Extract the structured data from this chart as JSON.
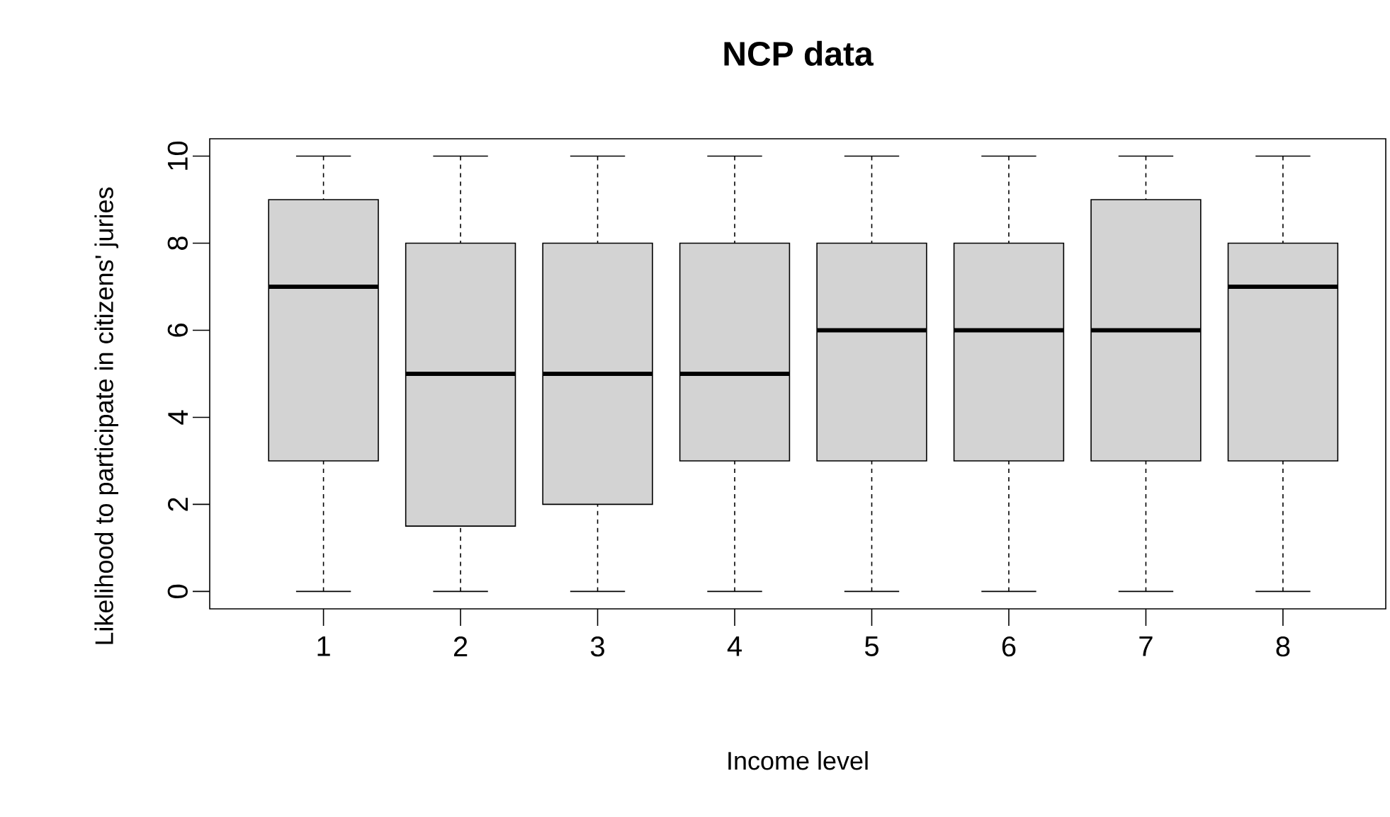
{
  "chart_data": {
    "type": "box",
    "title": "NCP data",
    "xlabel": "Income level",
    "ylabel": "Likelihood to participate in citizens' juries",
    "categories": [
      "1",
      "2",
      "3",
      "4",
      "5",
      "6",
      "7",
      "8"
    ],
    "ylim": [
      -0.4,
      10.4
    ],
    "yticks": [
      0,
      2,
      4,
      6,
      8,
      10
    ],
    "series": [
      {
        "color": "#d3d3d3",
        "boxes": [
          {
            "low": 0,
            "q1": 3,
            "median": 7,
            "q3": 9,
            "high": 10
          },
          {
            "low": 0,
            "q1": 1.5,
            "median": 5,
            "q3": 8,
            "high": 10
          },
          {
            "low": 0,
            "q1": 2,
            "median": 5,
            "q3": 8,
            "high": 10
          },
          {
            "low": 0,
            "q1": 3,
            "median": 5,
            "q3": 8,
            "high": 10
          },
          {
            "low": 0,
            "q1": 3,
            "median": 6,
            "q3": 8,
            "high": 10
          },
          {
            "low": 0,
            "q1": 3,
            "median": 6,
            "q3": 8,
            "high": 10
          },
          {
            "low": 0,
            "q1": 3,
            "median": 6,
            "q3": 9,
            "high": 10
          },
          {
            "low": 0,
            "q1": 3,
            "median": 7,
            "q3": 8,
            "high": 10
          }
        ]
      }
    ]
  }
}
